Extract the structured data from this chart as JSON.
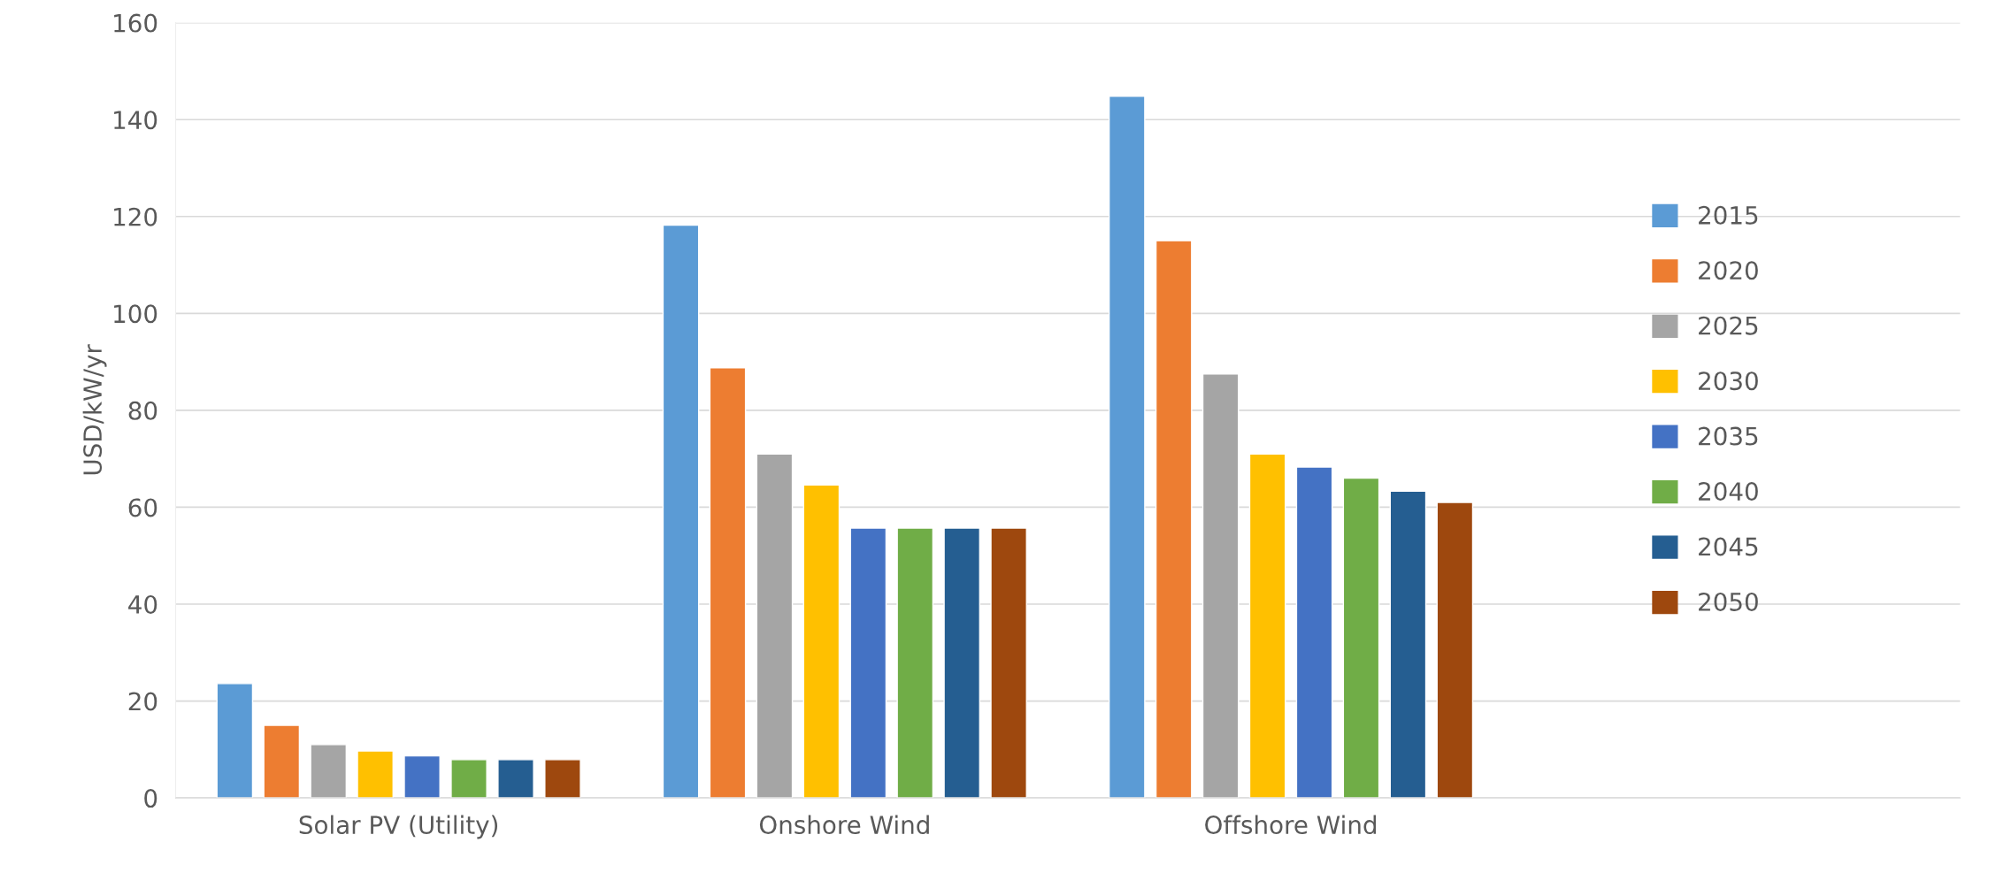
{
  "chart_data": {
    "type": "bar",
    "ylabel": "USD/kW/yr",
    "categories": [
      "Solar PV (Utility)",
      "Onshore Wind",
      "Offshore Wind"
    ],
    "ylim": [
      0,
      160
    ],
    "yticks": [
      0,
      20,
      40,
      60,
      80,
      100,
      120,
      140,
      160
    ],
    "grid": "y",
    "legend": "right",
    "series": [
      {
        "name": "2015",
        "color": "#5b9bd5",
        "values": [
          23.6,
          118.2,
          144.8
        ]
      },
      {
        "name": "2020",
        "color": "#ed7d31",
        "values": [
          15,
          88.8,
          115
        ]
      },
      {
        "name": "2025",
        "color": "#a5a5a5",
        "values": [
          11,
          71,
          87.5
        ]
      },
      {
        "name": "2030",
        "color": "#ffc000",
        "values": [
          9.7,
          64.6,
          71
        ]
      },
      {
        "name": "2035",
        "color": "#4472c4",
        "values": [
          8.7,
          55.7,
          68.3
        ]
      },
      {
        "name": "2040",
        "color": "#70ad47",
        "values": [
          7.9,
          55.7,
          66
        ]
      },
      {
        "name": "2045",
        "color": "#255e91",
        "values": [
          7.9,
          55.7,
          63.3
        ]
      },
      {
        "name": "2050",
        "color": "#9e480e",
        "values": [
          7.9,
          55.7,
          61
        ]
      }
    ]
  }
}
